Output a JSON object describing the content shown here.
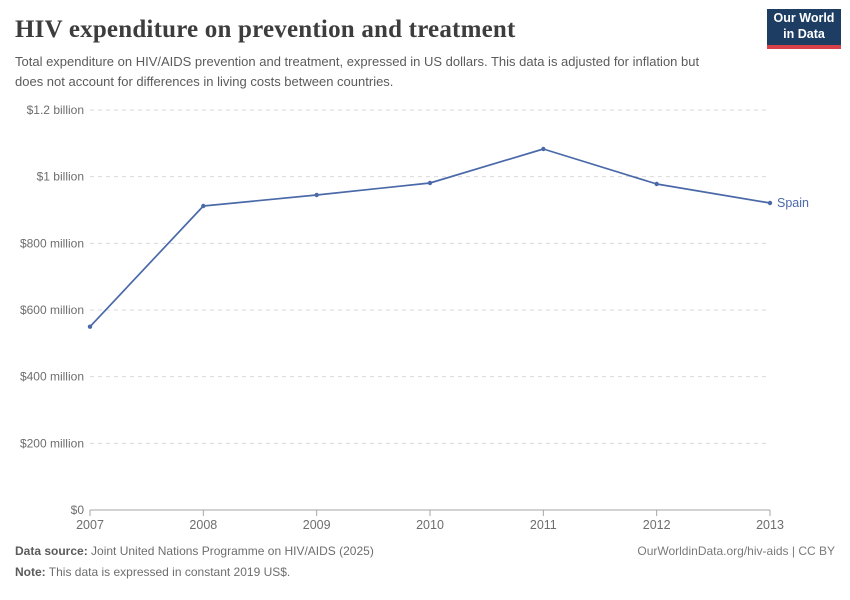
{
  "header": {
    "title": "HIV expenditure on prevention and treatment",
    "subtitle": "Total expenditure on HIV/AIDS prevention and treatment, expressed in US dollars. This data is adjusted for inflation but does not account for differences in living costs between countries.",
    "logo": {
      "line1": "Our World",
      "line2": "in Data",
      "bg_color": "#1d3d63",
      "accent_color": "#d8404a"
    }
  },
  "chart_data": {
    "type": "line",
    "title": "HIV expenditure on prevention and treatment",
    "x": [
      2007,
      2008,
      2009,
      2010,
      2011,
      2012,
      2013
    ],
    "xtick_labels": [
      "2007",
      "2008",
      "2009",
      "2010",
      "2011",
      "2012",
      "2013"
    ],
    "series": [
      {
        "name": "Spain",
        "color": "#4a69a8",
        "unit": "US$ millions",
        "values": [
          550,
          912,
          945,
          981,
          1083,
          978,
          921
        ]
      }
    ],
    "ylim": [
      0,
      1200
    ],
    "ytick_values": [
      0,
      200,
      400,
      600,
      800,
      1000,
      1200
    ],
    "ytick_labels": [
      "$0",
      "$200 million",
      "$400 million",
      "$600 million",
      "$800 million",
      "$1 billion",
      "$1.2 billion"
    ],
    "grid": "horizontal-dashed",
    "legend_position": "end-of-line-label",
    "grid_color": "#dadada",
    "axis_color": "#a5a5a5",
    "tick_label_color": "#6e6e6e"
  },
  "footer": {
    "data_source_label": "Data source:",
    "data_source_value": " Joint United Nations Programme on HIV/AIDS (2025)",
    "note_label": "Note:",
    "note_value": " This data is expressed in constant 2019 US$.",
    "right_text": "OurWorldinData.org/hiv-aids | CC BY"
  }
}
